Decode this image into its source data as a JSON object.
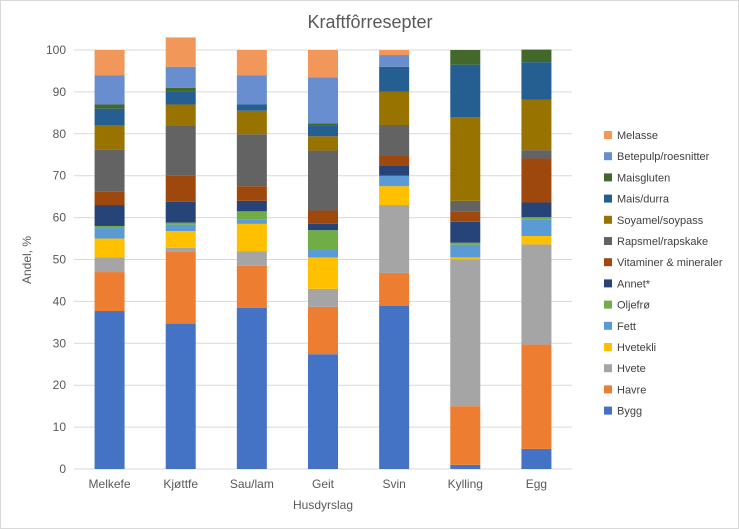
{
  "chart_data": {
    "type": "bar",
    "stacked": true,
    "title": "Kraftfôrresepter",
    "xlabel": "Husdyrslag",
    "ylabel": "Andel, %",
    "ylim": [
      0,
      100
    ],
    "yticks": [
      0,
      10,
      20,
      30,
      40,
      50,
      60,
      70,
      80,
      90,
      100
    ],
    "grid": true,
    "legend_position": "right",
    "categories": [
      "Melkefe",
      "Kjøttfe",
      "Sau/lam",
      "Geit",
      "Svin",
      "Kylling",
      "Egg"
    ],
    "series": [
      {
        "name": "Bygg",
        "color": "#4472C4",
        "values": [
          37.7,
          34.7,
          38.5,
          27.4,
          38.9,
          1.0,
          4.8
        ]
      },
      {
        "name": "Havre",
        "color": "#ED7D31",
        "values": [
          9.3,
          17.1,
          10.0,
          11.3,
          7.9,
          14.0,
          24.9
        ]
      },
      {
        "name": "Hvete",
        "color": "#A5A5A5",
        "values": [
          3.5,
          1.0,
          3.5,
          4.3,
          16.2,
          35.0,
          23.9
        ]
      },
      {
        "name": "Hvetekli",
        "color": "#FFC000",
        "values": [
          4.5,
          4.0,
          6.5,
          7.5,
          4.5,
          0.5,
          2.0
        ]
      },
      {
        "name": "Fett",
        "color": "#5B9BD5",
        "values": [
          2.5,
          1.5,
          1.0,
          2.0,
          2.5,
          3.0,
          4.0
        ]
      },
      {
        "name": "Oljefrø",
        "color": "#70AD47",
        "values": [
          0.5,
          0.5,
          2.0,
          4.5,
          0,
          0.5,
          0.5
        ]
      },
      {
        "name": "Annet*",
        "color": "#264478",
        "values": [
          5.0,
          5.0,
          2.5,
          1.5,
          2.5,
          5.0,
          3.5
        ]
      },
      {
        "name": "Vitaminer & mineraler",
        "color": "#9E480E",
        "values": [
          3.3,
          6.2,
          3.5,
          3.2,
          2.2,
          2.5,
          10.5
        ]
      },
      {
        "name": "Rapsmel/rapskake",
        "color": "#636363",
        "values": [
          10.0,
          12.0,
          12.4,
          14.3,
          7.4,
          2.5,
          2.0
        ]
      },
      {
        "name": "Soyamel/soypass",
        "color": "#997300",
        "values": [
          5.7,
          5.0,
          5.6,
          3.4,
          8.0,
          20.0,
          12.0
        ]
      },
      {
        "name": "Mais/durra",
        "color": "#255E91",
        "values": [
          4.0,
          3.0,
          1.5,
          2.6,
          5.9,
          12.5,
          9.0
        ]
      },
      {
        "name": "Maisgluten",
        "color": "#43682B",
        "values": [
          1.0,
          1.0,
          0,
          0.5,
          0,
          3.5,
          3.0
        ]
      },
      {
        "name": "Betepulp/roesnitter",
        "color": "#698ED0",
        "values": [
          7.0,
          5.0,
          7.0,
          11.0,
          2.8,
          0,
          0
        ]
      },
      {
        "name": "Melasse",
        "color": "#F1975A",
        "values": [
          6.0,
          7.0,
          6.0,
          6.5,
          1.2,
          0,
          0
        ]
      }
    ]
  }
}
